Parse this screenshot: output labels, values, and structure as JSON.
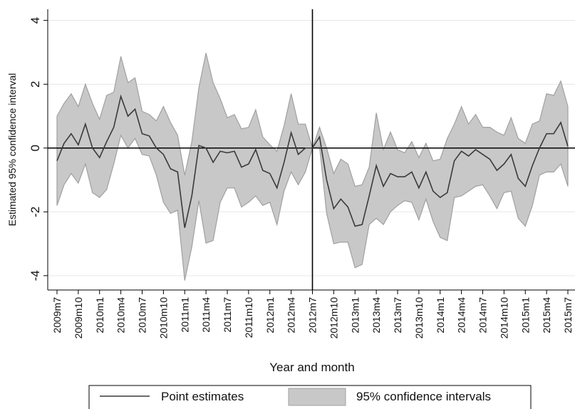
{
  "chart_data": {
    "type": "line-band",
    "xlabel": "Year and month",
    "ylabel": "Estimated 95% confidence interval",
    "categories": [
      "2009m7",
      null,
      null,
      "2009m10",
      null,
      null,
      "2010m1",
      null,
      null,
      "2010m4",
      null,
      null,
      "2010m7",
      null,
      null,
      "2010m10",
      null,
      null,
      "2011m1",
      null,
      null,
      "2011m4",
      null,
      null,
      "2011m7",
      null,
      null,
      "2011m10",
      null,
      null,
      "2012m1",
      null,
      null,
      "2012m4",
      null,
      null,
      "2012m7",
      null,
      null,
      "2012m10",
      null,
      null,
      "2013m1",
      null,
      null,
      "2013m4",
      null,
      null,
      "2013m7",
      null,
      null,
      "2013m10",
      null,
      null,
      "2014m1",
      null,
      null,
      "2014m4",
      null,
      null,
      "2014m7",
      null,
      null,
      "2014m10",
      null,
      null,
      "2015m1",
      null,
      null,
      "2015m4",
      null,
      null,
      "2015m7"
    ],
    "series": [
      {
        "name": "Point estimates",
        "color": "#3a3a3a",
        "values": [
          -0.4,
          0.15,
          0.45,
          0.1,
          0.75,
          0.0,
          -0.3,
          0.2,
          0.65,
          1.62,
          1.0,
          1.22,
          0.45,
          0.38,
          0.0,
          -0.2,
          -0.65,
          -0.75,
          -2.5,
          -1.5,
          0.08,
          0.0,
          -0.45,
          -0.1,
          -0.15,
          -0.1,
          -0.6,
          -0.5,
          -0.05,
          -0.7,
          -0.8,
          -1.25,
          -0.45,
          0.48,
          -0.2,
          0.0,
          0.0,
          0.35,
          -1.0,
          -1.9,
          -1.6,
          -1.85,
          -2.45,
          -2.4,
          -1.5,
          -0.55,
          -1.2,
          -0.8,
          -0.9,
          -0.9,
          -0.75,
          -1.25,
          -0.75,
          -1.35,
          -1.55,
          -1.4,
          -0.4,
          -0.1,
          -0.25,
          -0.05,
          -0.2,
          -0.35,
          -0.7,
          -0.5,
          -0.2,
          -0.95,
          -1.2,
          -0.55,
          0.0,
          0.45,
          0.45,
          0.8,
          0.05
        ]
      },
      {
        "name": "95% confidence intervals",
        "color": "#c8c8c8",
        "edge_color": "#a0a0a0",
        "upper": [
          1.0,
          1.4,
          1.7,
          1.3,
          2.0,
          1.4,
          0.9,
          1.65,
          1.75,
          2.87,
          2.05,
          2.2,
          1.15,
          1.05,
          0.85,
          1.3,
          0.8,
          0.4,
          -0.85,
          0.2,
          1.9,
          2.98,
          2.05,
          1.55,
          0.95,
          1.05,
          0.6,
          0.65,
          1.2,
          0.35,
          0.1,
          -0.1,
          0.7,
          1.7,
          0.75,
          0.75,
          0.0,
          0.65,
          0.0,
          -0.8,
          -0.35,
          -0.5,
          -1.2,
          -1.15,
          -0.6,
          1.1,
          -0.05,
          0.5,
          -0.05,
          -0.15,
          0.2,
          -0.3,
          0.15,
          -0.4,
          -0.35,
          0.3,
          0.75,
          1.3,
          0.75,
          1.05,
          0.65,
          0.65,
          0.5,
          0.4,
          0.95,
          0.3,
          0.15,
          0.75,
          0.85,
          1.7,
          1.65,
          2.1,
          1.3
        ],
        "lower": [
          -1.8,
          -1.15,
          -0.8,
          -1.1,
          -0.5,
          -1.4,
          -1.55,
          -1.3,
          -0.5,
          0.4,
          0.0,
          0.3,
          -0.2,
          -0.25,
          -0.85,
          -1.7,
          -2.05,
          -1.95,
          -4.15,
          -3.1,
          -1.65,
          -2.98,
          -2.9,
          -1.7,
          -1.25,
          -1.25,
          -1.85,
          -1.7,
          -1.5,
          -1.8,
          -1.7,
          -2.4,
          -1.35,
          -0.75,
          -1.15,
          -0.75,
          0.0,
          0.05,
          -2.05,
          -3.0,
          -2.95,
          -2.95,
          -3.75,
          -3.65,
          -2.4,
          -2.2,
          -2.4,
          -2.0,
          -1.8,
          -1.65,
          -1.7,
          -2.25,
          -1.6,
          -2.3,
          -2.8,
          -2.9,
          -1.55,
          -1.5,
          -1.35,
          -1.2,
          -1.15,
          -1.5,
          -1.9,
          -1.4,
          -1.35,
          -2.2,
          -2.45,
          -1.8,
          -0.85,
          -0.75,
          -0.75,
          -0.5,
          -1.2
        ]
      }
    ],
    "ylim": [
      -4.45,
      4.35
    ],
    "yticks": [
      -4,
      -2,
      0,
      2,
      4
    ],
    "grid": true,
    "reference_lines": {
      "x": "2012m7",
      "y": 0
    },
    "legend": "bottom"
  }
}
